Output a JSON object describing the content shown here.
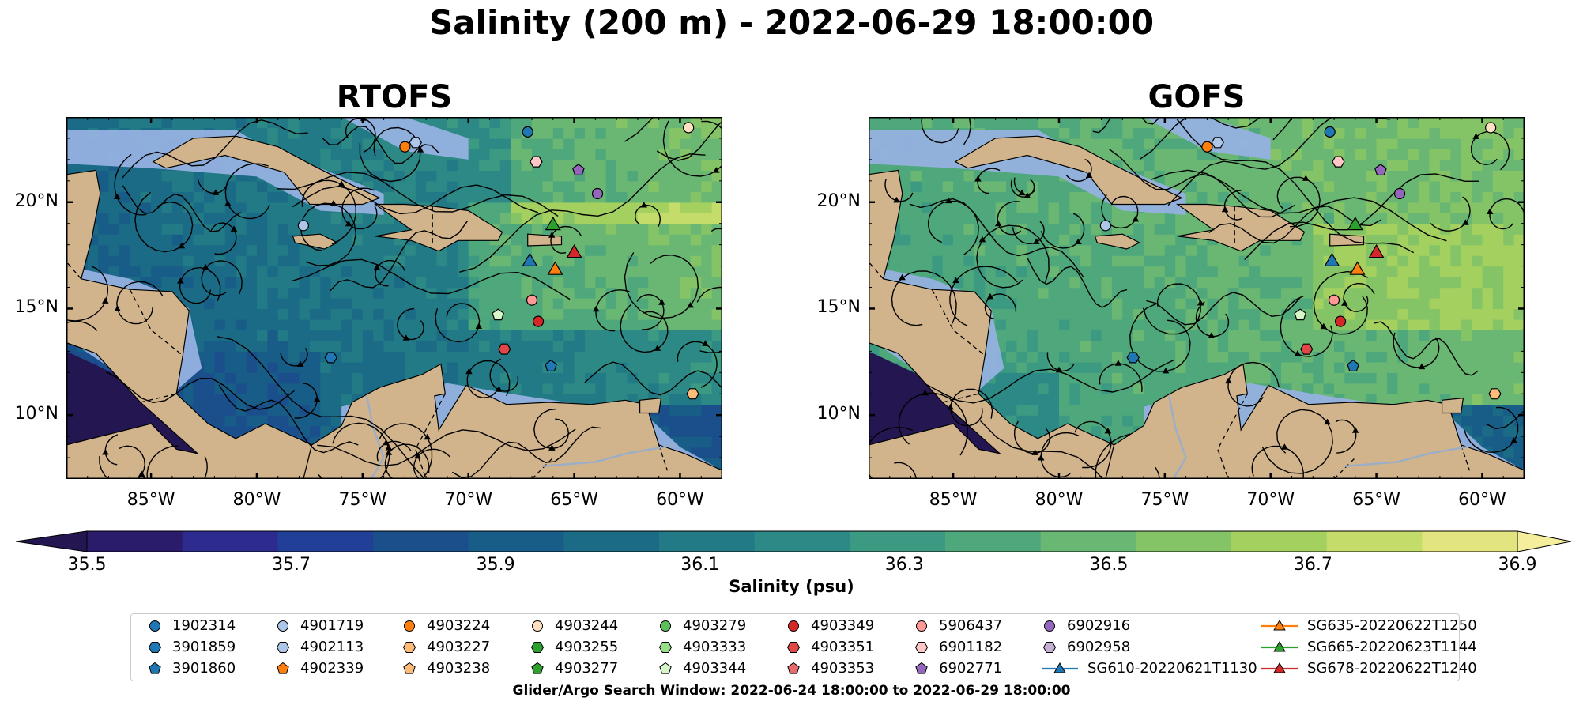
{
  "suptitle": "Salinity (200 m) - 2022-06-29 18:00:00",
  "colorbar": {
    "label": "Salinity (psu)",
    "ticks": [
      "35.5",
      "35.7",
      "35.9",
      "36.1",
      "36.3",
      "36.5",
      "36.7",
      "36.9"
    ],
    "levels": [
      35.5,
      35.6,
      35.7,
      35.8,
      35.9,
      36.0,
      36.1,
      36.2,
      36.3,
      36.4,
      36.5,
      36.6,
      36.7,
      36.8,
      36.9
    ],
    "colors": [
      "#2b1c6b",
      "#2e2b8f",
      "#213f96",
      "#1b4f8c",
      "#185d87",
      "#1b6b86",
      "#227a86",
      "#2d8985",
      "#3c9982",
      "#4fa77c",
      "#69b773",
      "#85c466",
      "#a3d05f",
      "#c3dc6a",
      "#e2e47f"
    ],
    "under_color": "#241650",
    "over_color": "#f4ee9d"
  },
  "footnote": "Glider/Argo Search Window: 2022-06-24 18:00:00 to 2022-06-29 18:00:00",
  "legend": [
    {
      "label": "1902314",
      "marker": "circle",
      "color": "#1f77b4"
    },
    {
      "label": "3901859",
      "marker": "hexagon",
      "color": "#1f77b4"
    },
    {
      "label": "3901860",
      "marker": "pentagon",
      "color": "#1f77b4"
    },
    {
      "label": "4901719",
      "marker": "circle",
      "color": "#aec7e8"
    },
    {
      "label": "4902113",
      "marker": "hexagon",
      "color": "#aec7e8"
    },
    {
      "label": "4902339",
      "marker": "pentagon",
      "color": "#ff7f0e"
    },
    {
      "label": "4903224",
      "marker": "circle",
      "color": "#ff7f0e"
    },
    {
      "label": "4903227",
      "marker": "hexagon",
      "color": "#ffbb78"
    },
    {
      "label": "4903238",
      "marker": "pentagon",
      "color": "#ffbb78"
    },
    {
      "label": "4903244",
      "marker": "circle",
      "color": "#ffe0c0"
    },
    {
      "label": "4903255",
      "marker": "hexagon",
      "color": "#2ca02c"
    },
    {
      "label": "4903277",
      "marker": "pentagon",
      "color": "#2ca02c"
    },
    {
      "label": "4903279",
      "marker": "circle",
      "color": "#5cbf5c"
    },
    {
      "label": "4903333",
      "marker": "hexagon",
      "color": "#98df8a"
    },
    {
      "label": "4903344",
      "marker": "pentagon",
      "color": "#d6f5c8"
    },
    {
      "label": "4903349",
      "marker": "circle",
      "color": "#d62728"
    },
    {
      "label": "4903351",
      "marker": "hexagon",
      "color": "#e04848"
    },
    {
      "label": "4903353",
      "marker": "pentagon",
      "color": "#e86a6a"
    },
    {
      "label": "5906437",
      "marker": "circle",
      "color": "#ff9896"
    },
    {
      "label": "6901182",
      "marker": "hexagon",
      "color": "#ffc8c6"
    },
    {
      "label": "6902771",
      "marker": "pentagon",
      "color": "#9467bd"
    },
    {
      "label": "6902916",
      "marker": "circle",
      "color": "#9467bd"
    },
    {
      "label": "6902958",
      "marker": "hexagon",
      "color": "#c5b0d5"
    },
    {
      "label": "SG610-20220621T1130",
      "marker": "triangle-line",
      "color": "#1f77b4"
    },
    {
      "label": "SG635-20220622T1250",
      "marker": "triangle-line",
      "color": "#ff7f0e"
    },
    {
      "label": "SG665-20220623T1144",
      "marker": "triangle-line",
      "color": "#2ca02c"
    },
    {
      "label": "SG678-20220622T1240",
      "marker": "triangle-line",
      "color": "#d62728"
    }
  ],
  "chart_data": [
    {
      "type": "heatmap",
      "title": "RTOFS",
      "variable": "Salinity at 200 m (psu)",
      "xlim": [
        -89,
        -58
      ],
      "ylim": [
        7,
        24
      ],
      "x_ticks": [
        "85°W",
        "80°W",
        "75°W",
        "70°W",
        "65°W",
        "60°W"
      ],
      "x_tick_values": [
        -85,
        -80,
        -75,
        -70,
        -65,
        -60
      ],
      "y_ticks": [
        "10°N",
        "15°N",
        "20°N"
      ],
      "y_tick_values": [
        10,
        15,
        20
      ],
      "overlay": "current streamlines",
      "markers": [
        {
          "label": "1902314",
          "lon": -67.2,
          "lat": 23.3,
          "marker": "circle",
          "color": "#1f77b4"
        },
        {
          "label": "4901719",
          "lon": -77.8,
          "lat": 18.9,
          "marker": "circle",
          "color": "#aec7e8"
        },
        {
          "label": "3901859",
          "lon": -76.5,
          "lat": 12.7,
          "marker": "hexagon",
          "color": "#1f77b4"
        },
        {
          "label": "4902113",
          "lon": -72.5,
          "lat": 22.8,
          "marker": "hexagon",
          "color": "#aec7e8"
        },
        {
          "label": "4903224",
          "lon": -73.0,
          "lat": 22.6,
          "marker": "circle",
          "color": "#ff7f0e"
        },
        {
          "label": "4903244",
          "lon": -59.6,
          "lat": 23.5,
          "marker": "circle",
          "color": "#ffe0c0"
        },
        {
          "label": "4903227",
          "lon": -59.4,
          "lat": 11.0,
          "marker": "hexagon",
          "color": "#ffbb78"
        },
        {
          "label": "6901182",
          "lon": -66.8,
          "lat": 21.9,
          "marker": "hexagon",
          "color": "#ffc8c6"
        },
        {
          "label": "6902771",
          "lon": -64.8,
          "lat": 21.5,
          "marker": "pentagon",
          "color": "#9467bd"
        },
        {
          "label": "6902916",
          "lon": -63.9,
          "lat": 20.4,
          "marker": "circle",
          "color": "#9467bd"
        },
        {
          "label": "5906437",
          "lon": -67.0,
          "lat": 15.4,
          "marker": "circle",
          "color": "#ff9896"
        },
        {
          "label": "4903344",
          "lon": -68.6,
          "lat": 14.7,
          "marker": "pentagon",
          "color": "#d6f5c8"
        },
        {
          "label": "4903349",
          "lon": -66.7,
          "lat": 14.4,
          "marker": "circle",
          "color": "#d62728"
        },
        {
          "label": "4903351",
          "lon": -68.3,
          "lat": 13.1,
          "marker": "hexagon",
          "color": "#e04848"
        },
        {
          "label": "3901860",
          "lon": -66.1,
          "lat": 12.3,
          "marker": "pentagon",
          "color": "#1f77b4"
        },
        {
          "label": "SG665-20220623T1144",
          "lon": -66.0,
          "lat": 18.9,
          "marker": "triangle",
          "color": "#2ca02c"
        },
        {
          "label": "SG610-20220621T1130",
          "lon": -67.1,
          "lat": 17.2,
          "marker": "triangle",
          "color": "#1f77b4"
        },
        {
          "label": "SG635-20220622T1250",
          "lon": -65.9,
          "lat": 16.8,
          "marker": "triangle",
          "color": "#ff7f0e"
        },
        {
          "label": "SG678-20220622T1240",
          "lon": -65.0,
          "lat": 17.6,
          "marker": "triangle",
          "color": "#d62728"
        }
      ]
    },
    {
      "type": "heatmap",
      "title": "GOFS",
      "variable": "Salinity at 200 m (psu)",
      "xlim": [
        -89,
        -58
      ],
      "ylim": [
        7,
        24
      ],
      "x_ticks": [
        "85°W",
        "80°W",
        "75°W",
        "70°W",
        "65°W",
        "60°W"
      ],
      "x_tick_values": [
        -85,
        -80,
        -75,
        -70,
        -65,
        -60
      ],
      "y_ticks": [
        "10°N",
        "15°N",
        "20°N"
      ],
      "y_tick_values": [
        10,
        15,
        20
      ],
      "overlay": "current streamlines",
      "markers": [
        {
          "label": "1902314",
          "lon": -67.2,
          "lat": 23.3,
          "marker": "circle",
          "color": "#1f77b4"
        },
        {
          "label": "4901719",
          "lon": -77.8,
          "lat": 18.9,
          "marker": "circle",
          "color": "#aec7e8"
        },
        {
          "label": "3901859",
          "lon": -76.5,
          "lat": 12.7,
          "marker": "hexagon",
          "color": "#1f77b4"
        },
        {
          "label": "4902113",
          "lon": -72.5,
          "lat": 22.8,
          "marker": "hexagon",
          "color": "#aec7e8"
        },
        {
          "label": "4903224",
          "lon": -73.0,
          "lat": 22.6,
          "marker": "circle",
          "color": "#ff7f0e"
        },
        {
          "label": "4903244",
          "lon": -59.6,
          "lat": 23.5,
          "marker": "circle",
          "color": "#ffe0c0"
        },
        {
          "label": "4903227",
          "lon": -59.4,
          "lat": 11.0,
          "marker": "hexagon",
          "color": "#ffbb78"
        },
        {
          "label": "6901182",
          "lon": -66.8,
          "lat": 21.9,
          "marker": "hexagon",
          "color": "#ffc8c6"
        },
        {
          "label": "6902771",
          "lon": -64.8,
          "lat": 21.5,
          "marker": "pentagon",
          "color": "#9467bd"
        },
        {
          "label": "6902916",
          "lon": -63.9,
          "lat": 20.4,
          "marker": "circle",
          "color": "#9467bd"
        },
        {
          "label": "5906437",
          "lon": -67.0,
          "lat": 15.4,
          "marker": "circle",
          "color": "#ff9896"
        },
        {
          "label": "4903344",
          "lon": -68.6,
          "lat": 14.7,
          "marker": "pentagon",
          "color": "#d6f5c8"
        },
        {
          "label": "4903349",
          "lon": -66.7,
          "lat": 14.4,
          "marker": "circle",
          "color": "#d62728"
        },
        {
          "label": "4903351",
          "lon": -68.3,
          "lat": 13.1,
          "marker": "hexagon",
          "color": "#e04848"
        },
        {
          "label": "3901860",
          "lon": -66.1,
          "lat": 12.3,
          "marker": "pentagon",
          "color": "#1f77b4"
        },
        {
          "label": "SG665-20220623T1144",
          "lon": -66.0,
          "lat": 18.9,
          "marker": "triangle",
          "color": "#2ca02c"
        },
        {
          "label": "SG610-20220621T1130",
          "lon": -67.1,
          "lat": 17.2,
          "marker": "triangle",
          "color": "#1f77b4"
        },
        {
          "label": "SG635-20220622T1250",
          "lon": -65.9,
          "lat": 16.8,
          "marker": "triangle",
          "color": "#ff7f0e"
        },
        {
          "label": "SG678-20220622T1240",
          "lon": -65.0,
          "lat": 17.6,
          "marker": "triangle",
          "color": "#d62728"
        }
      ]
    }
  ]
}
